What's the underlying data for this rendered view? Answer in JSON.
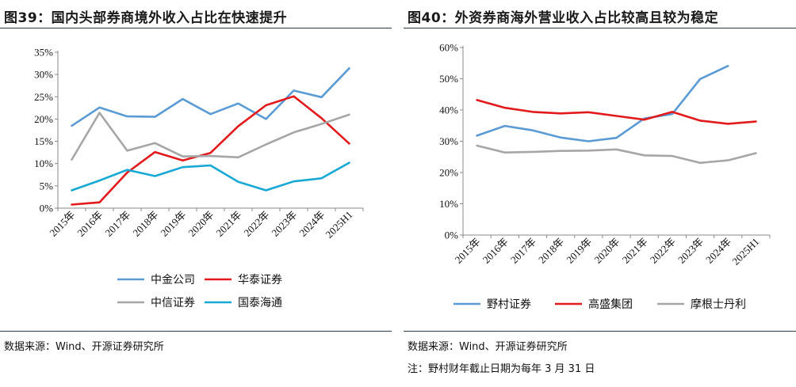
{
  "charts": {
    "left": {
      "title": "图39：国内头部券商境外收入占比在快速提升",
      "source": "数据来源：Wind、开源证券研究所"
    },
    "right": {
      "title": "图40：外资券商海外营业收入占比较高且较为稳定",
      "source": "数据来源：Wind、开源证券研究所",
      "note": "注：野村财年截止日期为每年 3 月 31 日"
    }
  },
  "chart_data": [
    {
      "type": "line",
      "title": "图39：国内头部券商境外收入占比在快速提升",
      "categories": [
        "2015年",
        "2016年",
        "2017年",
        "2018年",
        "2019年",
        "2020年",
        "2021年",
        "2022年",
        "2023年",
        "2024年",
        "2025H1"
      ],
      "ylim": [
        0,
        35
      ],
      "yticks": [
        "0%",
        "5%",
        "10%",
        "15%",
        "20%",
        "25%",
        "30%",
        "35%"
      ],
      "legend_position": "bottom",
      "series": [
        {
          "name": "中金公司",
          "color": "#5b9bd5",
          "values": [
            18.5,
            22.6,
            20.6,
            20.5,
            24.5,
            21.1,
            23.5,
            20.0,
            26.4,
            24.9,
            31.4
          ]
        },
        {
          "name": "华泰证券",
          "color": "#e31a1c",
          "values": [
            0.8,
            1.3,
            8.0,
            12.6,
            10.7,
            12.4,
            18.4,
            23.1,
            25.1,
            20.2,
            14.5
          ]
        },
        {
          "name": "中信证券",
          "color": "#a6a6a6",
          "values": [
            10.9,
            21.4,
            12.9,
            14.6,
            11.6,
            11.7,
            11.4,
            14.3,
            17.0,
            18.9,
            21.0
          ]
        },
        {
          "name": "国泰海通",
          "color": "#17a9d4",
          "values": [
            4.0,
            6.2,
            8.6,
            7.2,
            9.2,
            9.6,
            5.9,
            4.0,
            6.0,
            6.7,
            10.2
          ]
        }
      ]
    },
    {
      "type": "line",
      "title": "图40：外资券商海外营业收入占比较高且较为稳定",
      "categories": [
        "2015年",
        "2016年",
        "2017年",
        "2018年",
        "2019年",
        "2020年",
        "2021年",
        "2022年",
        "2023年",
        "2024年",
        "2025H1"
      ],
      "ylim": [
        0,
        60
      ],
      "yticks": [
        "0%",
        "10%",
        "20%",
        "30%",
        "40%",
        "50%",
        "60%"
      ],
      "legend_position": "bottom",
      "series": [
        {
          "name": "野村证券",
          "color": "#5b9bd5",
          "values": [
            31.8,
            34.9,
            33.5,
            31.2,
            30.0,
            31.1,
            37.3,
            38.7,
            49.9,
            54.1,
            null
          ]
        },
        {
          "name": "高盛集团",
          "color": "#e31a1c",
          "values": [
            43.2,
            40.7,
            39.4,
            38.9,
            39.3,
            38.1,
            36.9,
            39.4,
            36.6,
            35.6,
            36.3
          ]
        },
        {
          "name": "摩根士丹利",
          "color": "#a6a6a6",
          "values": [
            28.6,
            26.4,
            26.6,
            26.9,
            27.0,
            27.4,
            25.5,
            25.3,
            23.1,
            23.9,
            26.2
          ]
        }
      ]
    }
  ]
}
